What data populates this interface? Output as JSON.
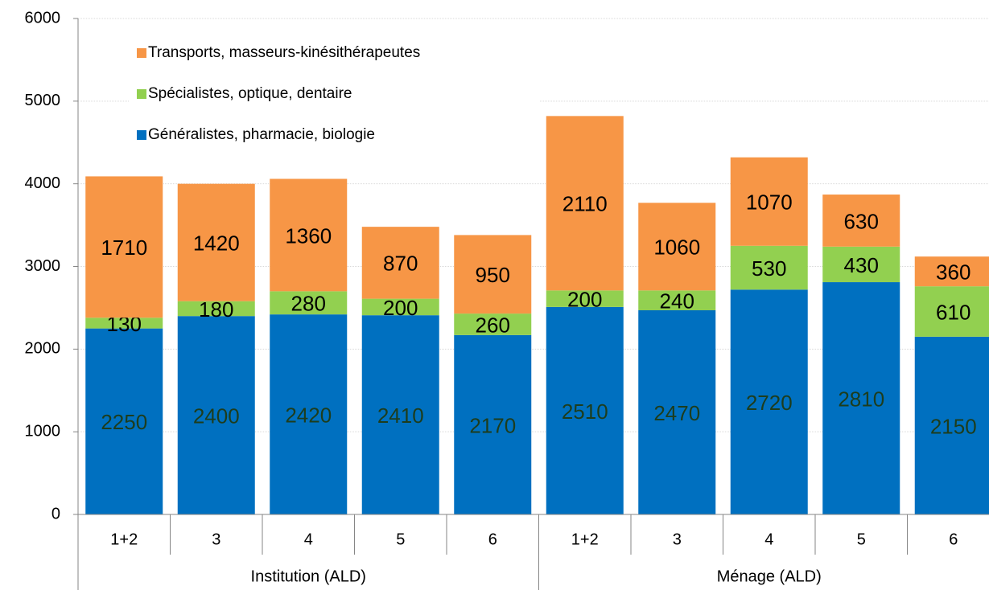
{
  "chart_data": {
    "type": "stacked_bar",
    "groups": [
      {
        "label": "Institution (ALD)",
        "categories": [
          "1+2",
          "3",
          "4",
          "5",
          "6"
        ]
      },
      {
        "label": "Ménage (ALD)",
        "categories": [
          "1+2",
          "3",
          "4",
          "5",
          "6"
        ]
      }
    ],
    "series": [
      {
        "name": "Généralistes, pharmacie, biologie",
        "color": "#0070c0",
        "values": [
          2250,
          2400,
          2420,
          2410,
          2170,
          2510,
          2470,
          2720,
          2810,
          2150
        ]
      },
      {
        "name": "Spécialistes, optique, dentaire",
        "color": "#92d050",
        "values": [
          130,
          180,
          280,
          200,
          260,
          200,
          240,
          530,
          430,
          610
        ]
      },
      {
        "name": "Transports, masseurs-kinésithérapeutes",
        "color": "#f79646",
        "values": [
          1710,
          1420,
          1360,
          870,
          950,
          2110,
          1060,
          1070,
          630,
          360
        ]
      }
    ],
    "ylim": [
      0,
      6000
    ],
    "yticks": [
      0,
      1000,
      2000,
      3000,
      4000,
      5000,
      6000
    ],
    "grid": true,
    "legend": "top-left"
  }
}
